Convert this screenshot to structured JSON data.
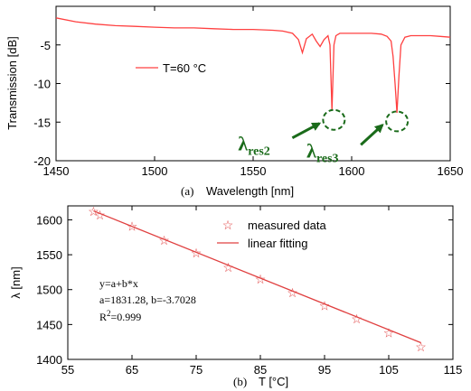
{
  "chart_data": [
    {
      "type": "line",
      "panel": "(a)",
      "xlabel": "Wavelength [nm]",
      "ylabel": "Transmission [dB]",
      "xlim": [
        1450,
        1650
      ],
      "ylim": [
        -20,
        0
      ],
      "xticks": [
        1450,
        1500,
        1550,
        1600,
        1650
      ],
      "yticks": [
        -5,
        -10,
        -15,
        -20
      ],
      "legend": "T=60 °C",
      "legend_pos": "middle-left",
      "color": "#ff4040",
      "series": [
        {
          "name": "T=60 °C",
          "x": [
            1450,
            1460,
            1470,
            1480,
            1490,
            1500,
            1510,
            1520,
            1530,
            1540,
            1550,
            1560,
            1565,
            1570,
            1573,
            1575,
            1577,
            1580,
            1582,
            1584,
            1586,
            1588,
            1589,
            1590,
            1591,
            1592,
            1594,
            1597,
            1600,
            1605,
            1610,
            1615,
            1618,
            1620,
            1621,
            1622,
            1623,
            1624,
            1625,
            1627,
            1630,
            1635,
            1640,
            1645,
            1650
          ],
          "y": [
            -1.5,
            -2.0,
            -2.3,
            -2.5,
            -2.6,
            -2.7,
            -2.8,
            -2.8,
            -2.9,
            -3.0,
            -3.0,
            -3.1,
            -3.2,
            -3.5,
            -4.3,
            -6.0,
            -4.2,
            -3.6,
            -4.5,
            -5.2,
            -4.3,
            -3.8,
            -5.0,
            -13.5,
            -5.0,
            -3.8,
            -3.5,
            -3.5,
            -3.5,
            -3.5,
            -3.5,
            -3.6,
            -3.9,
            -4.5,
            -6.5,
            -10.0,
            -13.8,
            -9.0,
            -5.0,
            -4.0,
            -3.8,
            -3.8,
            -3.8,
            -3.9,
            -4.0
          ]
        }
      ],
      "annotations": [
        {
          "label": "λ",
          "sub": "res2",
          "x": 1591,
          "y": -14
        },
        {
          "label": "λ",
          "sub": "res3",
          "x": 1623,
          "y": -14.2
        }
      ]
    },
    {
      "type": "scatter",
      "panel": "(b)",
      "xlabel": "T [°C]",
      "ylabel": "λ [nm]",
      "xlim": [
        55,
        115
      ],
      "ylim": [
        1400,
        1600
      ],
      "xticks": [
        55,
        65,
        75,
        85,
        95,
        105,
        115
      ],
      "yticks": [
        1400,
        1450,
        1500,
        1550,
        1600
      ],
      "color": "#e04040",
      "series": [
        {
          "name": "measured data",
          "x": [
            59,
            60,
            65,
            70,
            75,
            80,
            85,
            90,
            95,
            100,
            105,
            110
          ],
          "y": [
            1612,
            1607,
            1591,
            1571,
            1553,
            1532,
            1515,
            1496,
            1477,
            1458,
            1438,
            1418
          ]
        },
        {
          "name": "linear fitting",
          "x": [
            59,
            110
          ],
          "y": [
            1612.8,
            1423.9
          ]
        }
      ],
      "fit_text": [
        "y=a+b*x",
        "a=1831.28, b=-3.7028",
        "R",
        "2",
        "=0.999"
      ]
    }
  ]
}
